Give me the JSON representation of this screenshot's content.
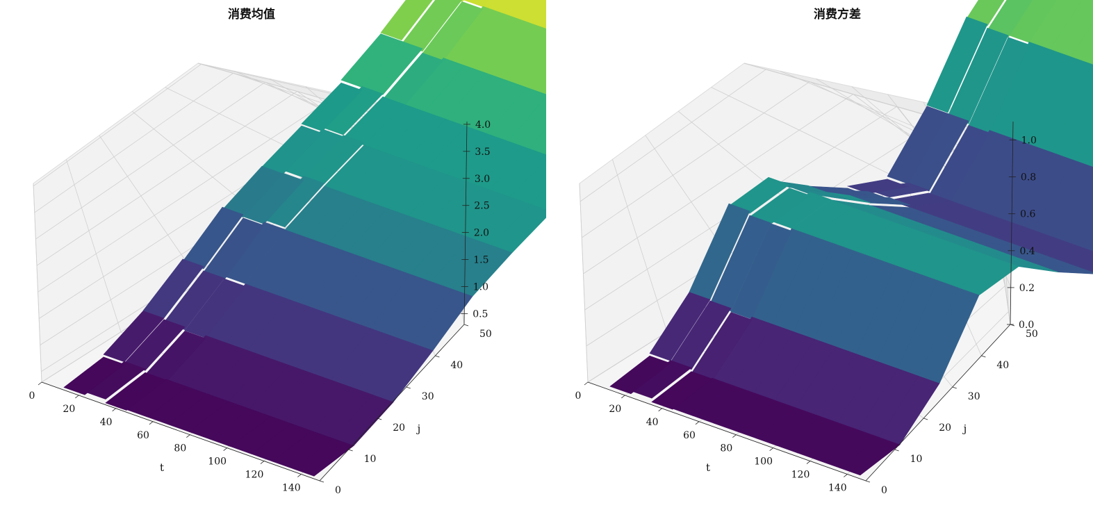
{
  "chart_data": [
    {
      "type": "surface3d",
      "title": "消费均值",
      "xlabel": "t",
      "ylabel": "j",
      "zlabel": "",
      "colormap": "viridis",
      "grid": true,
      "xlim": [
        0,
        150
      ],
      "ylim": [
        0,
        50
      ],
      "zlim": [
        0.3,
        4.05
      ],
      "x_ticks": [
        0,
        20,
        40,
        60,
        80,
        100,
        120,
        140
      ],
      "y_ticks": [
        0,
        10,
        20,
        30,
        40,
        50
      ],
      "z_ticks": [
        0.5,
        1.0,
        1.5,
        2.0,
        2.5,
        3.0,
        3.5,
        4.0
      ],
      "z_tick_labels": [
        "0.5",
        "1.0",
        "1.5",
        "2.0",
        "2.5",
        "3.0",
        "3.5",
        "4.0"
      ],
      "profile_j": [
        0,
        5,
        10,
        15,
        20,
        25,
        30,
        35,
        40,
        45,
        50
      ],
      "profile_z": [
        0.35,
        0.45,
        0.8,
        1.3,
        1.85,
        2.2,
        2.5,
        2.8,
        3.2,
        3.7,
        4.0
      ]
    },
    {
      "type": "surface3d",
      "title": "消费方差",
      "xlabel": "t",
      "ylabel": "j",
      "zlabel": "",
      "colormap": "viridis",
      "grid": true,
      "xlim": [
        0,
        150
      ],
      "ylim": [
        0,
        50
      ],
      "zlim": [
        0,
        1.1
      ],
      "x_ticks": [
        0,
        20,
        40,
        60,
        80,
        100,
        120,
        140
      ],
      "y_ticks": [
        0,
        10,
        20,
        30,
        40,
        50
      ],
      "z_ticks": [
        0.0,
        0.2,
        0.4,
        0.6,
        0.8,
        1.0
      ],
      "z_tick_labels": [
        "0.0",
        "0.2",
        "0.4",
        "0.6",
        "0.8",
        "1.0"
      ],
      "profile_j": [
        0,
        5,
        10,
        15,
        20,
        25,
        30,
        35,
        40,
        45,
        50
      ],
      "profile_z": [
        0.02,
        0.05,
        0.25,
        0.6,
        0.62,
        0.45,
        0.3,
        0.2,
        0.45,
        0.8,
        1.0
      ]
    }
  ]
}
